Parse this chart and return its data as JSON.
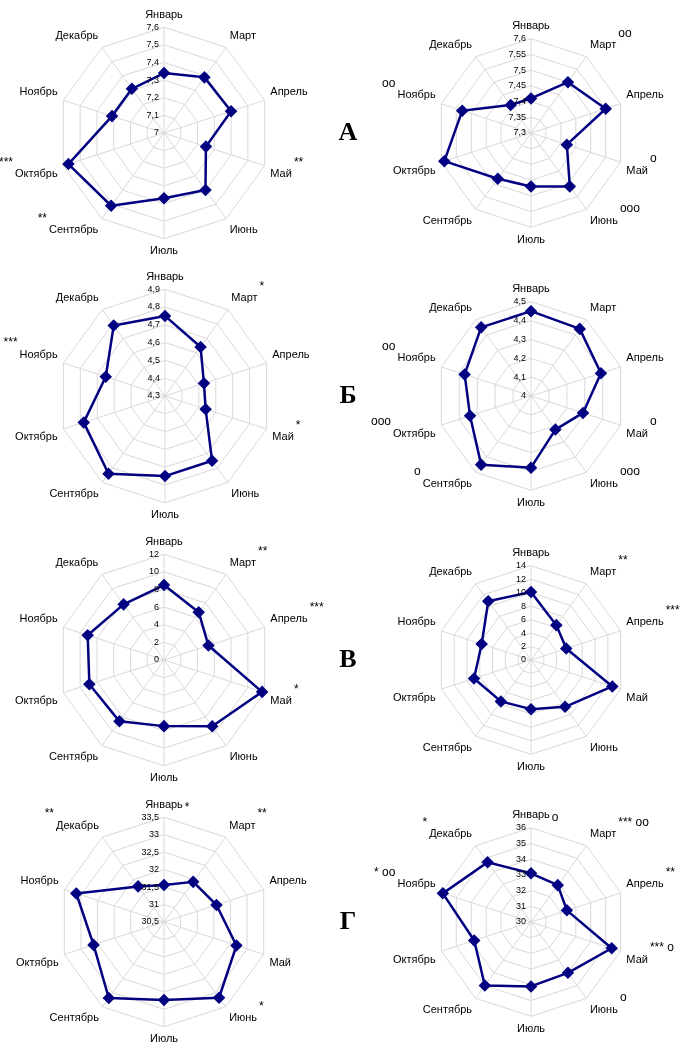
{
  "chart_data": [
    {
      "type": "radar",
      "title": "А",
      "categories": [
        "Январь",
        "Март",
        "Апрель",
        "Май",
        "Июнь",
        "Июль",
        "Сентябрь",
        "Октябрь",
        "Ноябрь",
        "Декабрь"
      ],
      "series": [
        {
          "color": "#000080",
          "values": [
            7.34,
            7.39,
            7.4,
            7.25,
            7.4,
            7.37,
            7.51,
            7.57,
            7.31,
            7.31
          ]
        }
      ],
      "ylim": [
        7,
        7.6
      ],
      "yticks": [
        7,
        {
          "value": 7.1,
          "label": "7,1"
        },
        {
          "value": 7.2,
          "label": "7,2"
        },
        {
          "value": 7.3,
          "label": "7,3"
        },
        {
          "value": 7.4,
          "label": "7,4"
        },
        {
          "value": 7.5,
          "label": "7,5"
        },
        {
          "value": 7.6,
          "label": "7,6"
        }
      ],
      "grid": true,
      "marker": "diamond",
      "annotations": [
        {
          "text": "***",
          "x": "Октябрь"
        },
        {
          "text": "**",
          "x": "Май"
        },
        {
          "text": "**",
          "x": "Сентябрь"
        }
      ]
    },
    {
      "type": "radar",
      "categories": [
        "Январь",
        "Март",
        "Апрель",
        "Май",
        "Июнь",
        "Июль",
        "Сентябрь",
        "Октябрь",
        "Ноябрь",
        "Декабрь"
      ],
      "series": [
        {
          "color": "#000080",
          "values": [
            7.41,
            7.5,
            7.55,
            7.42,
            7.51,
            7.47,
            7.48,
            7.59,
            7.53,
            7.41
          ]
        }
      ],
      "ylim": [
        7.3,
        7.6
      ],
      "yticks": [
        {
          "value": 7.3,
          "label": "7,3"
        },
        {
          "value": 7.35,
          "label": "7,35"
        },
        {
          "value": 7.4,
          "label": "7,4"
        },
        {
          "value": 7.45,
          "label": "7,45"
        },
        {
          "value": 7.5,
          "label": "7,5"
        },
        {
          "value": 7.55,
          "label": "7,55"
        },
        {
          "value": 7.6,
          "label": "7,6"
        }
      ],
      "grid": true,
      "marker": "diamond",
      "annotations": [
        {
          "text": "oo",
          "x": "Март"
        },
        {
          "text": "oo",
          "x": "Ноябрь"
        },
        {
          "text": "o",
          "x": "Май"
        },
        {
          "text": "ooo",
          "x": "Июнь"
        }
      ]
    },
    {
      "type": "radar",
      "title": "Б",
      "categories": [
        "Январь",
        "Март",
        "Апрель",
        "Май",
        "Июнь",
        "Июль",
        "Сентябрь",
        "Октябрь",
        "Ноябрь",
        "Декабрь"
      ],
      "series": [
        {
          "color": "#000080",
          "values": [
            4.75,
            4.64,
            4.53,
            4.54,
            4.75,
            4.75,
            4.84,
            4.78,
            4.65,
            4.79
          ]
        }
      ],
      "ylim": [
        4.3,
        4.9
      ],
      "yticks": [
        {
          "value": 4.3,
          "label": "4,3"
        },
        {
          "value": 4.4,
          "label": "4,4"
        },
        {
          "value": 4.5,
          "label": "4,5"
        },
        {
          "value": 4.6,
          "label": "4,6"
        },
        {
          "value": 4.7,
          "label": "4,7"
        },
        {
          "value": 4.8,
          "label": "4,8"
        },
        {
          "value": 4.9,
          "label": "4,9"
        }
      ],
      "grid": true,
      "marker": "diamond",
      "annotations": [
        {
          "text": "*",
          "x": "Март"
        },
        {
          "text": "***",
          "x": "Ноябрь"
        },
        {
          "text": "*",
          "x": "Май"
        }
      ]
    },
    {
      "type": "radar",
      "categories": [
        "Январь",
        "Март",
        "Апрель",
        "Май",
        "Июнь",
        "Июль",
        "Сентябрь",
        "Октябрь",
        "Ноябрь",
        "Декабрь"
      ],
      "series": [
        {
          "color": "#000080",
          "values": [
            4.45,
            4.44,
            4.39,
            4.29,
            4.22,
            4.38,
            4.45,
            4.34,
            4.37,
            4.45
          ]
        }
      ],
      "ylim": [
        4,
        4.5
      ],
      "yticks": [
        4,
        {
          "value": 4.1,
          "label": "4,1"
        },
        {
          "value": 4.2,
          "label": "4,2"
        },
        {
          "value": 4.3,
          "label": "4,3"
        },
        {
          "value": 4.4,
          "label": "4,4"
        },
        {
          "value": 4.5,
          "label": "4,5"
        }
      ],
      "grid": true,
      "marker": "diamond",
      "annotations": [
        {
          "text": "oo",
          "x": "Ноябрь"
        },
        {
          "text": "ooo",
          "x": "Октябрь"
        },
        {
          "text": "o",
          "x": "Май"
        },
        {
          "text": "ooo",
          "x": "Июнь"
        },
        {
          "text": "o",
          "x": "Сентябрь"
        }
      ]
    },
    {
      "type": "radar",
      "title": "В",
      "categories": [
        "Январь",
        "Март",
        "Апрель",
        "Май",
        "Июнь",
        "Июль",
        "Сентябрь",
        "Октябрь",
        "Ноябрь",
        "Декабрь"
      ],
      "series": [
        {
          "color": "#000080",
          "values": [
            8.5,
            6.7,
            5.3,
            11.7,
            9.3,
            7.5,
            8.6,
            8.9,
            9.1,
            7.8
          ]
        }
      ],
      "ylim": [
        0,
        12
      ],
      "yticks": [
        0,
        2,
        4,
        6,
        8,
        10,
        12
      ],
      "grid": true,
      "marker": "diamond",
      "annotations": [
        {
          "text": "**",
          "x": "Март"
        },
        {
          "text": "***",
          "x": "Апрель"
        },
        {
          "text": "*",
          "x": "Май"
        }
      ]
    },
    {
      "type": "radar",
      "categories": [
        "Январь",
        "Март",
        "Апрель",
        "Май",
        "Июнь",
        "Июль",
        "Сентябрь",
        "Октябрь",
        "Ноябрь",
        "Декабрь"
      ],
      "series": [
        {
          "color": "#000080",
          "values": [
            10.1,
            6.4,
            5.5,
            12.7,
            8.6,
            7.3,
            7.6,
            8.9,
            7.7,
            10.8
          ]
        }
      ],
      "ylim": [
        0,
        14
      ],
      "yticks": [
        0,
        2,
        4,
        6,
        8,
        10,
        12,
        14
      ],
      "grid": true,
      "marker": "diamond",
      "annotations": [
        {
          "text": "**",
          "x": "Март"
        },
        {
          "text": "***",
          "x": "Апрель"
        }
      ]
    },
    {
      "type": "radar",
      "title": "Г",
      "categories": [
        "Январь",
        "Март",
        "Апрель",
        "Май",
        "Июнь",
        "Июль",
        "Сентябрь",
        "Октябрь",
        "Ноябрь",
        "Декабрь"
      ],
      "series": [
        {
          "color": "#000080",
          "values": [
            31.56,
            31.92,
            32.08,
            32.68,
            33.18,
            32.73,
            33.19,
            32.62,
            33.14,
            31.76
          ]
        }
      ],
      "ylim": [
        30.5,
        33.5
      ],
      "yticks": [
        {
          "value": 30.5,
          "label": "30,5"
        },
        31,
        {
          "value": 31.5,
          "label": "31,5"
        },
        32,
        {
          "value": 32.5,
          "label": "32,5"
        },
        33,
        {
          "value": 33.5,
          "label": "33,5"
        }
      ],
      "grid": true,
      "marker": "diamond",
      "annotations": [
        {
          "text": "*",
          "x": "Январь"
        },
        {
          "text": "**",
          "x": "Декабрь"
        },
        {
          "text": "**",
          "x": "Март"
        },
        {
          "text": "*",
          "x": "Июнь"
        }
      ]
    },
    {
      "type": "radar",
      "categories": [
        "Январь",
        "Март",
        "Апрель",
        "Май",
        "Июнь",
        "Июль",
        "Сентябрь",
        "Октябрь",
        "Ноябрь",
        "Декабрь"
      ],
      "series": [
        {
          "color": "#000080",
          "values": [
            33.1,
            32.9,
            32.4,
            35.4,
            34.0,
            34.1,
            35.0,
            33.8,
            35.9,
            34.7
          ]
        }
      ],
      "ylim": [
        30,
        36
      ],
      "yticks": [
        30,
        31,
        32,
        33,
        34,
        35,
        36
      ],
      "grid": true,
      "marker": "diamond",
      "annotations": [
        {
          "text": "o",
          "x": "Январь"
        },
        {
          "text": "*",
          "x": "Декабрь"
        },
        {
          "text": "*** oo",
          "x": "Март"
        },
        {
          "text": "* oo",
          "x": "Ноябрь"
        },
        {
          "text": "**",
          "x": "Апрель"
        },
        {
          "text": "*** o",
          "x": "Май"
        },
        {
          "text": "o",
          "x": "Июнь"
        }
      ]
    }
  ]
}
